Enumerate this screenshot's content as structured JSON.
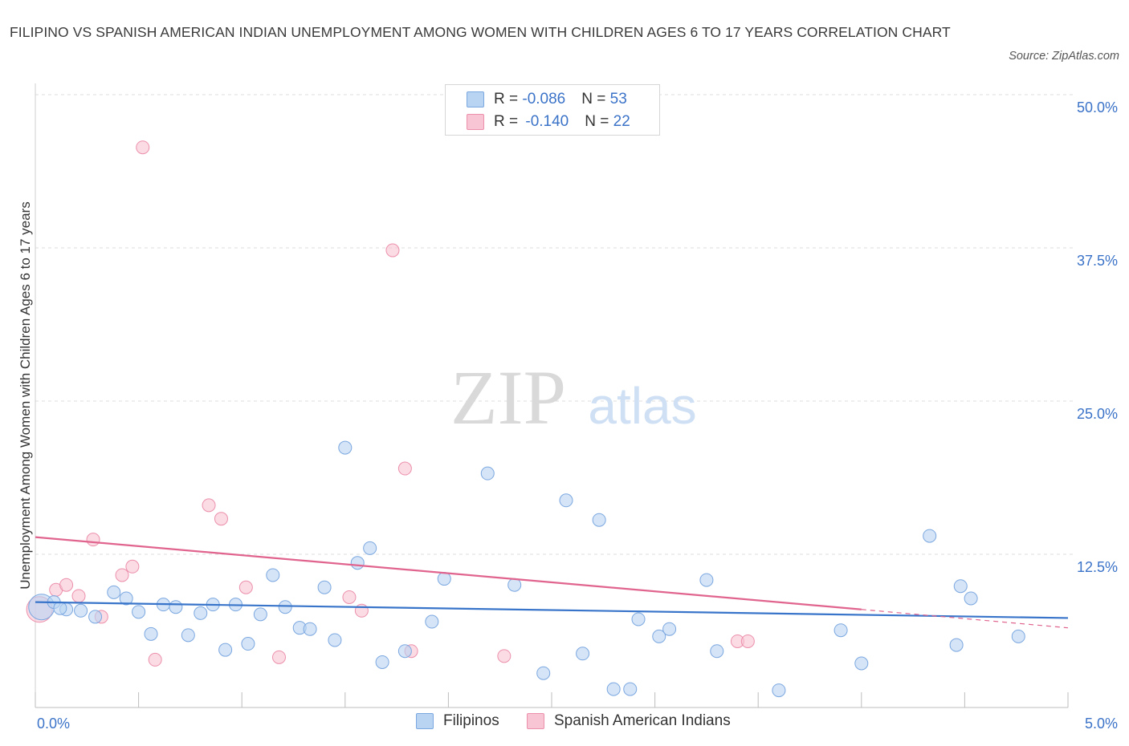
{
  "header": {
    "title": "FILIPINO VS SPANISH AMERICAN INDIAN UNEMPLOYMENT AMONG WOMEN WITH CHILDREN AGES 6 TO 17 YEARS CORRELATION CHART",
    "source": "Source: ZipAtlas.com"
  },
  "watermark": {
    "zip": "ZIP",
    "atlas": "atlas"
  },
  "legend": {
    "rows": [
      {
        "r_label": "R = ",
        "r_value": "-0.086",
        "n_label": "N = ",
        "n_value": "53"
      },
      {
        "r_label": "R = ",
        "r_value": "-0.140",
        "n_label": "N = ",
        "n_value": "22"
      }
    ]
  },
  "colors": {
    "blue_fill": "#b9d3f2",
    "blue_stroke": "#7ba7e0",
    "blue_line": "#3874c9",
    "pink_fill": "#f8c5d4",
    "pink_stroke": "#ec8fab",
    "pink_line": "#e0648e",
    "grid": "#dcdcdc",
    "axis_label": "#3b73c8"
  },
  "chart_data": {
    "type": "scatter",
    "title": "FILIPINO VS SPANISH AMERICAN INDIAN UNEMPLOYMENT AMONG WOMEN WITH CHILDREN AGES 6 TO 17 YEARS CORRELATION CHART",
    "xlabel": "",
    "ylabel": "Unemployment Among Women with Children Ages 6 to 17 years",
    "xlim": [
      0,
      5
    ],
    "ylim": [
      0,
      50
    ],
    "x_tick_labels": [
      "0.0%",
      "5.0%"
    ],
    "y_ticks": [
      12.5,
      25,
      37.5,
      50
    ],
    "y_tick_labels": [
      "12.5%",
      "25.0%",
      "37.5%",
      "50.0%"
    ],
    "grid": "horizontal dashed",
    "legend_position": "top-center",
    "series": [
      {
        "name": "Filipinos",
        "R": -0.086,
        "N": 53,
        "trend": {
          "x": [
            0,
            5
          ],
          "y": [
            8.6,
            7.3
          ]
        },
        "points": [
          {
            "x": 0.03,
            "y": 8.2,
            "big": true
          },
          {
            "x": 0.09,
            "y": 8.6
          },
          {
            "x": 0.15,
            "y": 8.0
          },
          {
            "x": 0.22,
            "y": 7.9
          },
          {
            "x": 0.29,
            "y": 7.4
          },
          {
            "x": 0.38,
            "y": 9.4
          },
          {
            "x": 0.44,
            "y": 8.9
          },
          {
            "x": 0.5,
            "y": 7.8
          },
          {
            "x": 0.56,
            "y": 6.0
          },
          {
            "x": 0.62,
            "y": 8.4
          },
          {
            "x": 0.68,
            "y": 8.2
          },
          {
            "x": 0.74,
            "y": 5.9
          },
          {
            "x": 0.8,
            "y": 7.7
          },
          {
            "x": 0.86,
            "y": 8.4
          },
          {
            "x": 0.92,
            "y": 4.7
          },
          {
            "x": 0.97,
            "y": 8.4
          },
          {
            "x": 1.03,
            "y": 5.2
          },
          {
            "x": 1.09,
            "y": 7.6
          },
          {
            "x": 1.15,
            "y": 10.8
          },
          {
            "x": 1.21,
            "y": 8.2
          },
          {
            "x": 1.28,
            "y": 6.5
          },
          {
            "x": 1.33,
            "y": 6.4
          },
          {
            "x": 1.4,
            "y": 9.8
          },
          {
            "x": 1.45,
            "y": 5.5
          },
          {
            "x": 1.5,
            "y": 21.2
          },
          {
            "x": 1.56,
            "y": 11.8
          },
          {
            "x": 1.62,
            "y": 13.0
          },
          {
            "x": 1.68,
            "y": 3.7
          },
          {
            "x": 1.79,
            "y": 4.6
          },
          {
            "x": 1.92,
            "y": 7.0
          },
          {
            "x": 1.98,
            "y": 10.5
          },
          {
            "x": 2.19,
            "y": 19.1
          },
          {
            "x": 2.32,
            "y": 10.0
          },
          {
            "x": 2.46,
            "y": 2.8
          },
          {
            "x": 2.57,
            "y": 16.9
          },
          {
            "x": 2.65,
            "y": 4.4
          },
          {
            "x": 2.73,
            "y": 15.3
          },
          {
            "x": 2.8,
            "y": 1.5
          },
          {
            "x": 2.88,
            "y": 1.5
          },
          {
            "x": 2.92,
            "y": 7.2
          },
          {
            "x": 3.02,
            "y": 5.8
          },
          {
            "x": 3.07,
            "y": 6.4
          },
          {
            "x": 3.25,
            "y": 10.4
          },
          {
            "x": 3.3,
            "y": 4.6
          },
          {
            "x": 3.6,
            "y": 1.4
          },
          {
            "x": 3.9,
            "y": 6.3
          },
          {
            "x": 4.0,
            "y": 3.6
          },
          {
            "x": 4.33,
            "y": 14.0
          },
          {
            "x": 4.46,
            "y": 5.1
          },
          {
            "x": 4.48,
            "y": 9.9
          },
          {
            "x": 4.53,
            "y": 8.9
          },
          {
            "x": 4.76,
            "y": 5.8
          },
          {
            "x": 0.12,
            "y": 8.1
          }
        ]
      },
      {
        "name": "Spanish American Indians",
        "R": -0.14,
        "N": 22,
        "trend": {
          "x": [
            0,
            4.0
          ],
          "y": [
            13.9,
            8.0
          ]
        },
        "trend_extension": {
          "x": [
            4.0,
            5
          ],
          "y": [
            8.0,
            6.5
          ]
        },
        "points": [
          {
            "x": 0.02,
            "y": 8.0,
            "big": true
          },
          {
            "x": 0.1,
            "y": 9.6
          },
          {
            "x": 0.15,
            "y": 10.0
          },
          {
            "x": 0.21,
            "y": 9.1
          },
          {
            "x": 0.28,
            "y": 13.7
          },
          {
            "x": 0.32,
            "y": 7.4
          },
          {
            "x": 0.42,
            "y": 10.8
          },
          {
            "x": 0.47,
            "y": 11.5
          },
          {
            "x": 0.52,
            "y": 45.7
          },
          {
            "x": 0.58,
            "y": 3.9
          },
          {
            "x": 0.84,
            "y": 16.5
          },
          {
            "x": 0.9,
            "y": 15.4
          },
          {
            "x": 1.02,
            "y": 9.8
          },
          {
            "x": 1.18,
            "y": 4.1
          },
          {
            "x": 1.52,
            "y": 9.0
          },
          {
            "x": 1.58,
            "y": 7.9
          },
          {
            "x": 1.73,
            "y": 37.3
          },
          {
            "x": 1.79,
            "y": 19.5
          },
          {
            "x": 1.82,
            "y": 4.6
          },
          {
            "x": 2.27,
            "y": 4.2
          },
          {
            "x": 3.4,
            "y": 5.4
          },
          {
            "x": 3.45,
            "y": 5.4
          }
        ]
      }
    ]
  },
  "bottom_legend": {
    "items": [
      "Filipinos",
      "Spanish American Indians"
    ]
  }
}
